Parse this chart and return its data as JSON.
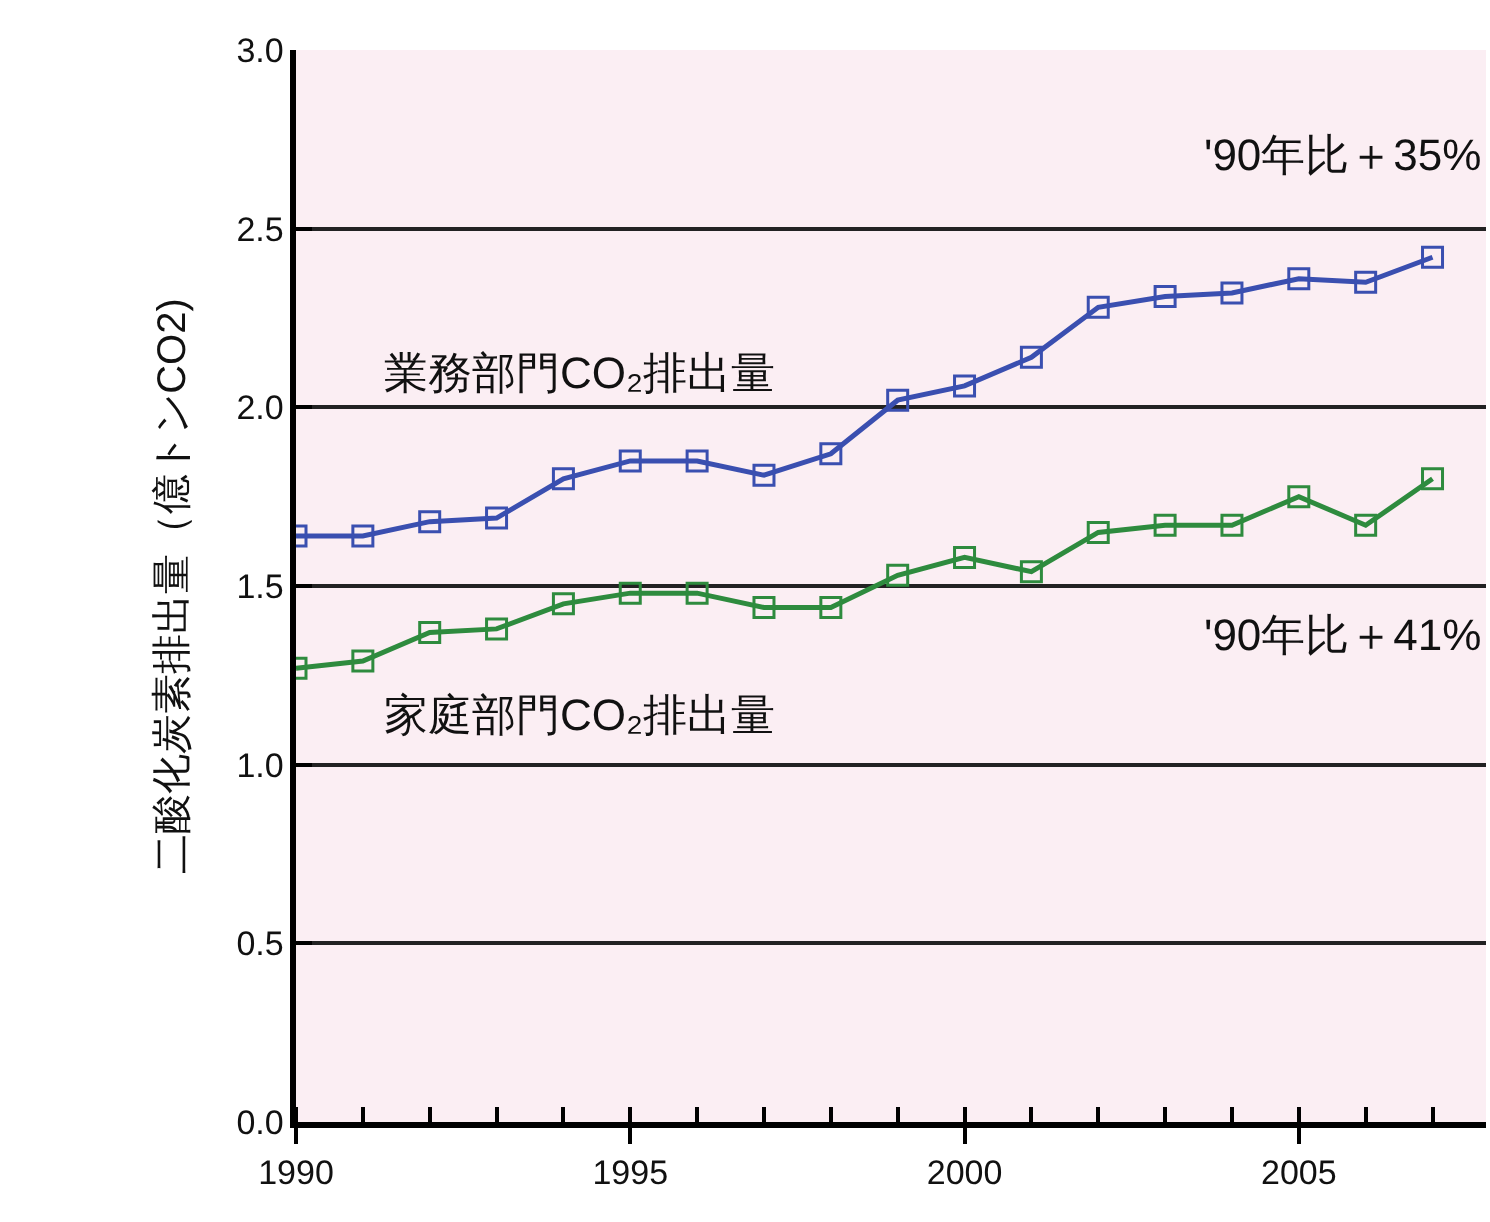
{
  "chart_data": {
    "type": "line",
    "ylabel": "二酸化炭素排出量（億トンCO2)",
    "x": [
      1990,
      1991,
      1992,
      1993,
      1994,
      1995,
      1996,
      1997,
      1998,
      1999,
      2000,
      2001,
      2002,
      2003,
      2004,
      2005,
      2006,
      2007
    ],
    "series": [
      {
        "name": "業務部門CO₂排出量",
        "color": "#3a4fb0",
        "values": [
          1.64,
          1.64,
          1.68,
          1.69,
          1.8,
          1.85,
          1.85,
          1.81,
          1.87,
          2.02,
          2.06,
          2.14,
          2.28,
          2.31,
          2.32,
          2.36,
          2.35,
          2.42
        ]
      },
      {
        "name": "家庭部門CO₂排出量",
        "color": "#2e8b3e",
        "values": [
          1.27,
          1.29,
          1.37,
          1.38,
          1.45,
          1.48,
          1.48,
          1.44,
          1.44,
          1.53,
          1.58,
          1.54,
          1.65,
          1.67,
          1.67,
          1.75,
          1.67,
          1.8
        ]
      }
    ],
    "annotations": [
      "'90年比＋35%",
      "'90年比＋41%"
    ],
    "xlim": [
      1990,
      2007.8
    ],
    "xticks": [
      1990,
      1995,
      2000,
      2005
    ],
    "ylim": [
      0,
      3.0
    ],
    "yticks": [
      {
        "value": 0,
        "label": "0.0"
      },
      {
        "value": 0.5,
        "label": "0.5"
      },
      {
        "value": 1,
        "label": "1.0"
      },
      {
        "value": 1.5,
        "label": "1.5"
      },
      {
        "value": 2,
        "label": "2.0"
      },
      {
        "value": 2.5,
        "label": "2.5"
      },
      {
        "value": 3,
        "label": "3.0"
      }
    ],
    "grid": "y",
    "marker": "square",
    "line_style": "solid",
    "legend": false
  }
}
